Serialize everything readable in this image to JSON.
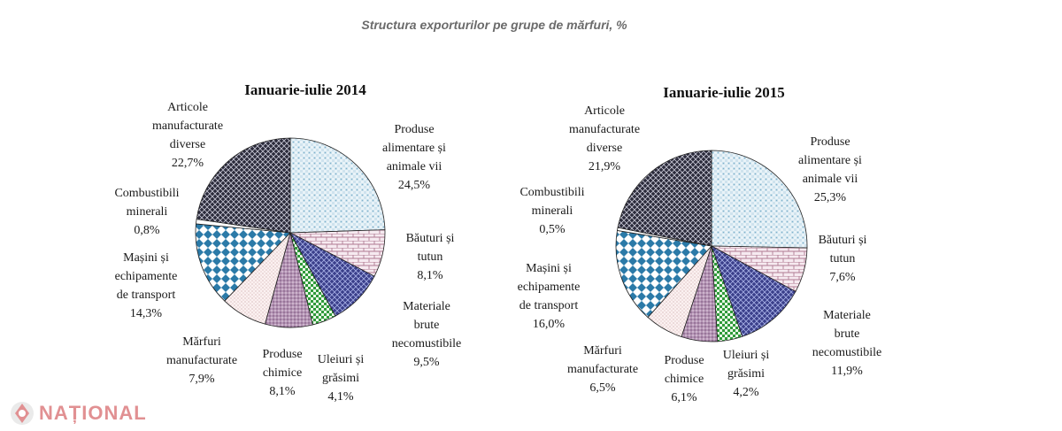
{
  "page_title": "Structura exporturilor pe grupe de mărfuri, %",
  "logo_text": "NAȚIONAL",
  "chart_data": [
    {
      "type": "pie",
      "title": "Ianuarie-iulie 2014",
      "slices": [
        {
          "label": [
            "Produse",
            "alimentare și",
            "animale vii",
            "24,5%"
          ],
          "value": 24.5,
          "pattern": "pat-check"
        },
        {
          "label": [
            "Băuturi și",
            "tutun",
            "8,1%"
          ],
          "value": 8.1,
          "pattern": "pat-brick"
        },
        {
          "label": [
            "Materiale",
            "brute",
            "necomustibile",
            "9,5%"
          ],
          "value": 9.5,
          "pattern": "pat-navy"
        },
        {
          "label": [
            "Uleiuri și",
            "grăsimi",
            "4,1%"
          ],
          "value": 4.1,
          "pattern": "pat-green"
        },
        {
          "label": [
            "Produse",
            "chimice",
            "8,1%"
          ],
          "value": 8.1,
          "pattern": "pat-purple"
        },
        {
          "label": [
            "Mărfuri",
            "manufacturate",
            "7,9%"
          ],
          "value": 7.9,
          "pattern": "pat-dots"
        },
        {
          "label": [
            "Mașini și",
            "echipamente",
            "de transport",
            "14,3%"
          ],
          "value": 14.3,
          "pattern": "pat-diamond"
        },
        {
          "label": [
            "Combustibili",
            "minerali",
            "0,8%"
          ],
          "value": 0.8,
          "pattern": "pat-white"
        },
        {
          "label": [
            "Articole",
            "manufacturate",
            "diverse",
            "22,7%"
          ],
          "value": 22.7,
          "pattern": "pat-dark"
        }
      ]
    },
    {
      "type": "pie",
      "title": "Ianuarie-iulie 2015",
      "slices": [
        {
          "label": [
            "Produse",
            "alimentare și",
            "animale vii",
            "25,3%"
          ],
          "value": 25.3,
          "pattern": "pat-check"
        },
        {
          "label": [
            "Băuturi și",
            "tutun",
            "7,6%"
          ],
          "value": 7.6,
          "pattern": "pat-brick"
        },
        {
          "label": [
            "Materiale",
            "brute",
            "necomustibile",
            "11,9%"
          ],
          "value": 11.9,
          "pattern": "pat-navy"
        },
        {
          "label": [
            "Uleiuri și",
            "grăsimi",
            "4,2%"
          ],
          "value": 4.2,
          "pattern": "pat-green"
        },
        {
          "label": [
            "Produse",
            "chimice",
            "6,1%"
          ],
          "value": 6.1,
          "pattern": "pat-purple"
        },
        {
          "label": [
            "Mărfuri",
            "manufacturate",
            "6,5%"
          ],
          "value": 6.5,
          "pattern": "pat-dots"
        },
        {
          "label": [
            "Mașini și",
            "echipamente",
            "de transport",
            "16,0%"
          ],
          "value": 16.0,
          "pattern": "pat-diamond"
        },
        {
          "label": [
            "Combustibili",
            "minerali",
            "0,5%"
          ],
          "value": 0.5,
          "pattern": "pat-white"
        },
        {
          "label": [
            "Articole",
            "manufacturate",
            "diverse",
            "21,9%"
          ],
          "value": 21.9,
          "pattern": "pat-dark"
        }
      ]
    }
  ]
}
